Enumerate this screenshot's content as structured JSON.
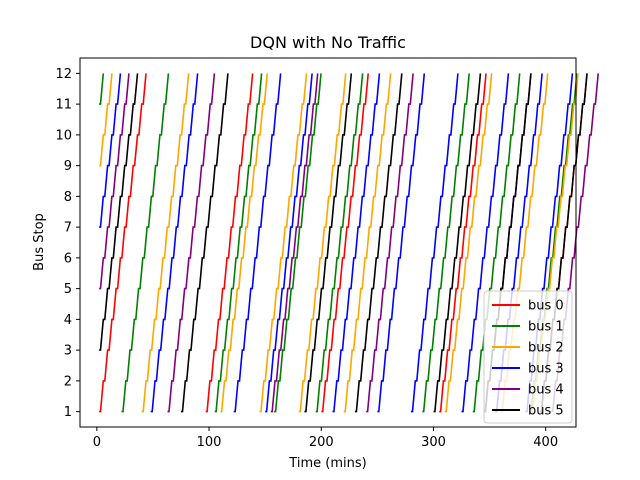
{
  "chart_data": {
    "type": "line",
    "title": "DQN with No Traffic",
    "xlabel": "Time (mins)",
    "ylabel": "Bus Stop",
    "xlim": [
      -15,
      427
    ],
    "ylim": [
      0.5,
      12.5
    ],
    "xticks": [
      0,
      100,
      200,
      300,
      400
    ],
    "yticks": [
      1,
      2,
      3,
      4,
      5,
      6,
      7,
      8,
      9,
      10,
      11,
      12
    ],
    "grid": false,
    "legend_position": "lower right",
    "colors": {
      "bus 0": "#ff0000",
      "bus 1": "#008000",
      "bus 2": "#ffa500",
      "bus 3": "#0000ff",
      "bus 4": "#800080",
      "bus 5": "#000000"
    },
    "series": [
      {
        "name": "bus 0",
        "start_stop": 1,
        "start_times": [
          2,
          97,
          200,
          305,
          395
        ]
      },
      {
        "name": "bus 1",
        "start_stop": 11,
        "start_times": [
          2,
          22,
          105,
          158,
          195,
          290,
          335,
          386
        ]
      },
      {
        "name": "bus 2",
        "start_stop": 9,
        "start_times": [
          2,
          40,
          110,
          145,
          180,
          220,
          310,
          360,
          387
        ]
      },
      {
        "name": "bus 3",
        "start_stop": 7,
        "start_times": [
          2,
          48,
          122,
          150,
          210,
          250,
          280,
          325,
          355,
          382
        ]
      },
      {
        "name": "bus 4",
        "start_stop": 5,
        "start_times": [
          2,
          63,
          155,
          240,
          345,
          405
        ]
      },
      {
        "name": "bus 5",
        "start_stop": 3,
        "start_times": [
          2,
          75,
          185,
          230,
          300,
          345,
          395
        ]
      }
    ]
  }
}
